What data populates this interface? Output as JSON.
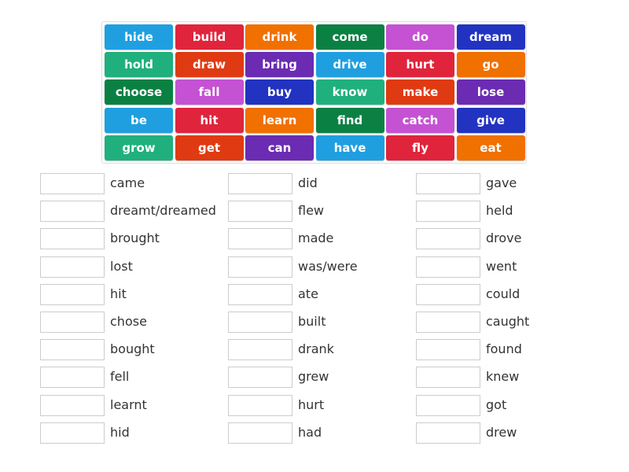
{
  "colors": {
    "blue": "#1f9fe0",
    "red": "#e0243c",
    "orange": "#f07000",
    "darkgreen": "#0b8043",
    "magenta": "#c452d2",
    "navy": "#2133c0",
    "teal": "#1fb07e",
    "redorange": "#e03a12",
    "purple": "#6b2bb2"
  },
  "tiles": [
    {
      "word": "hide",
      "color": "blue"
    },
    {
      "word": "build",
      "color": "red"
    },
    {
      "word": "drink",
      "color": "orange"
    },
    {
      "word": "come",
      "color": "darkgreen"
    },
    {
      "word": "do",
      "color": "magenta"
    },
    {
      "word": "dream",
      "color": "navy"
    },
    {
      "word": "hold",
      "color": "teal"
    },
    {
      "word": "draw",
      "color": "redorange"
    },
    {
      "word": "bring",
      "color": "purple"
    },
    {
      "word": "drive",
      "color": "blue"
    },
    {
      "word": "hurt",
      "color": "red"
    },
    {
      "word": "go",
      "color": "orange"
    },
    {
      "word": "choose",
      "color": "darkgreen"
    },
    {
      "word": "fall",
      "color": "magenta"
    },
    {
      "word": "buy",
      "color": "navy"
    },
    {
      "word": "know",
      "color": "teal"
    },
    {
      "word": "make",
      "color": "redorange"
    },
    {
      "word": "lose",
      "color": "purple"
    },
    {
      "word": "be",
      "color": "blue"
    },
    {
      "word": "hit",
      "color": "red"
    },
    {
      "word": "learn",
      "color": "orange"
    },
    {
      "word": "find",
      "color": "darkgreen"
    },
    {
      "word": "catch",
      "color": "magenta"
    },
    {
      "word": "give",
      "color": "navy"
    },
    {
      "word": "grow",
      "color": "teal"
    },
    {
      "word": "get",
      "color": "redorange"
    },
    {
      "word": "can",
      "color": "purple"
    },
    {
      "word": "have",
      "color": "blue"
    },
    {
      "word": "fly",
      "color": "red"
    },
    {
      "word": "eat",
      "color": "orange"
    }
  ],
  "answers": [
    [
      "came",
      "dreamt/dreamed",
      "brought",
      "lost",
      "hit",
      "chose",
      "bought",
      "fell",
      "learnt",
      "hid"
    ],
    [
      "did",
      "flew",
      "made",
      "was/were",
      "ate",
      "built",
      "drank",
      "grew",
      "hurt",
      "had"
    ],
    [
      "gave",
      "held",
      "drove",
      "went",
      "could",
      "caught",
      "found",
      "knew",
      "got",
      "drew"
    ]
  ]
}
